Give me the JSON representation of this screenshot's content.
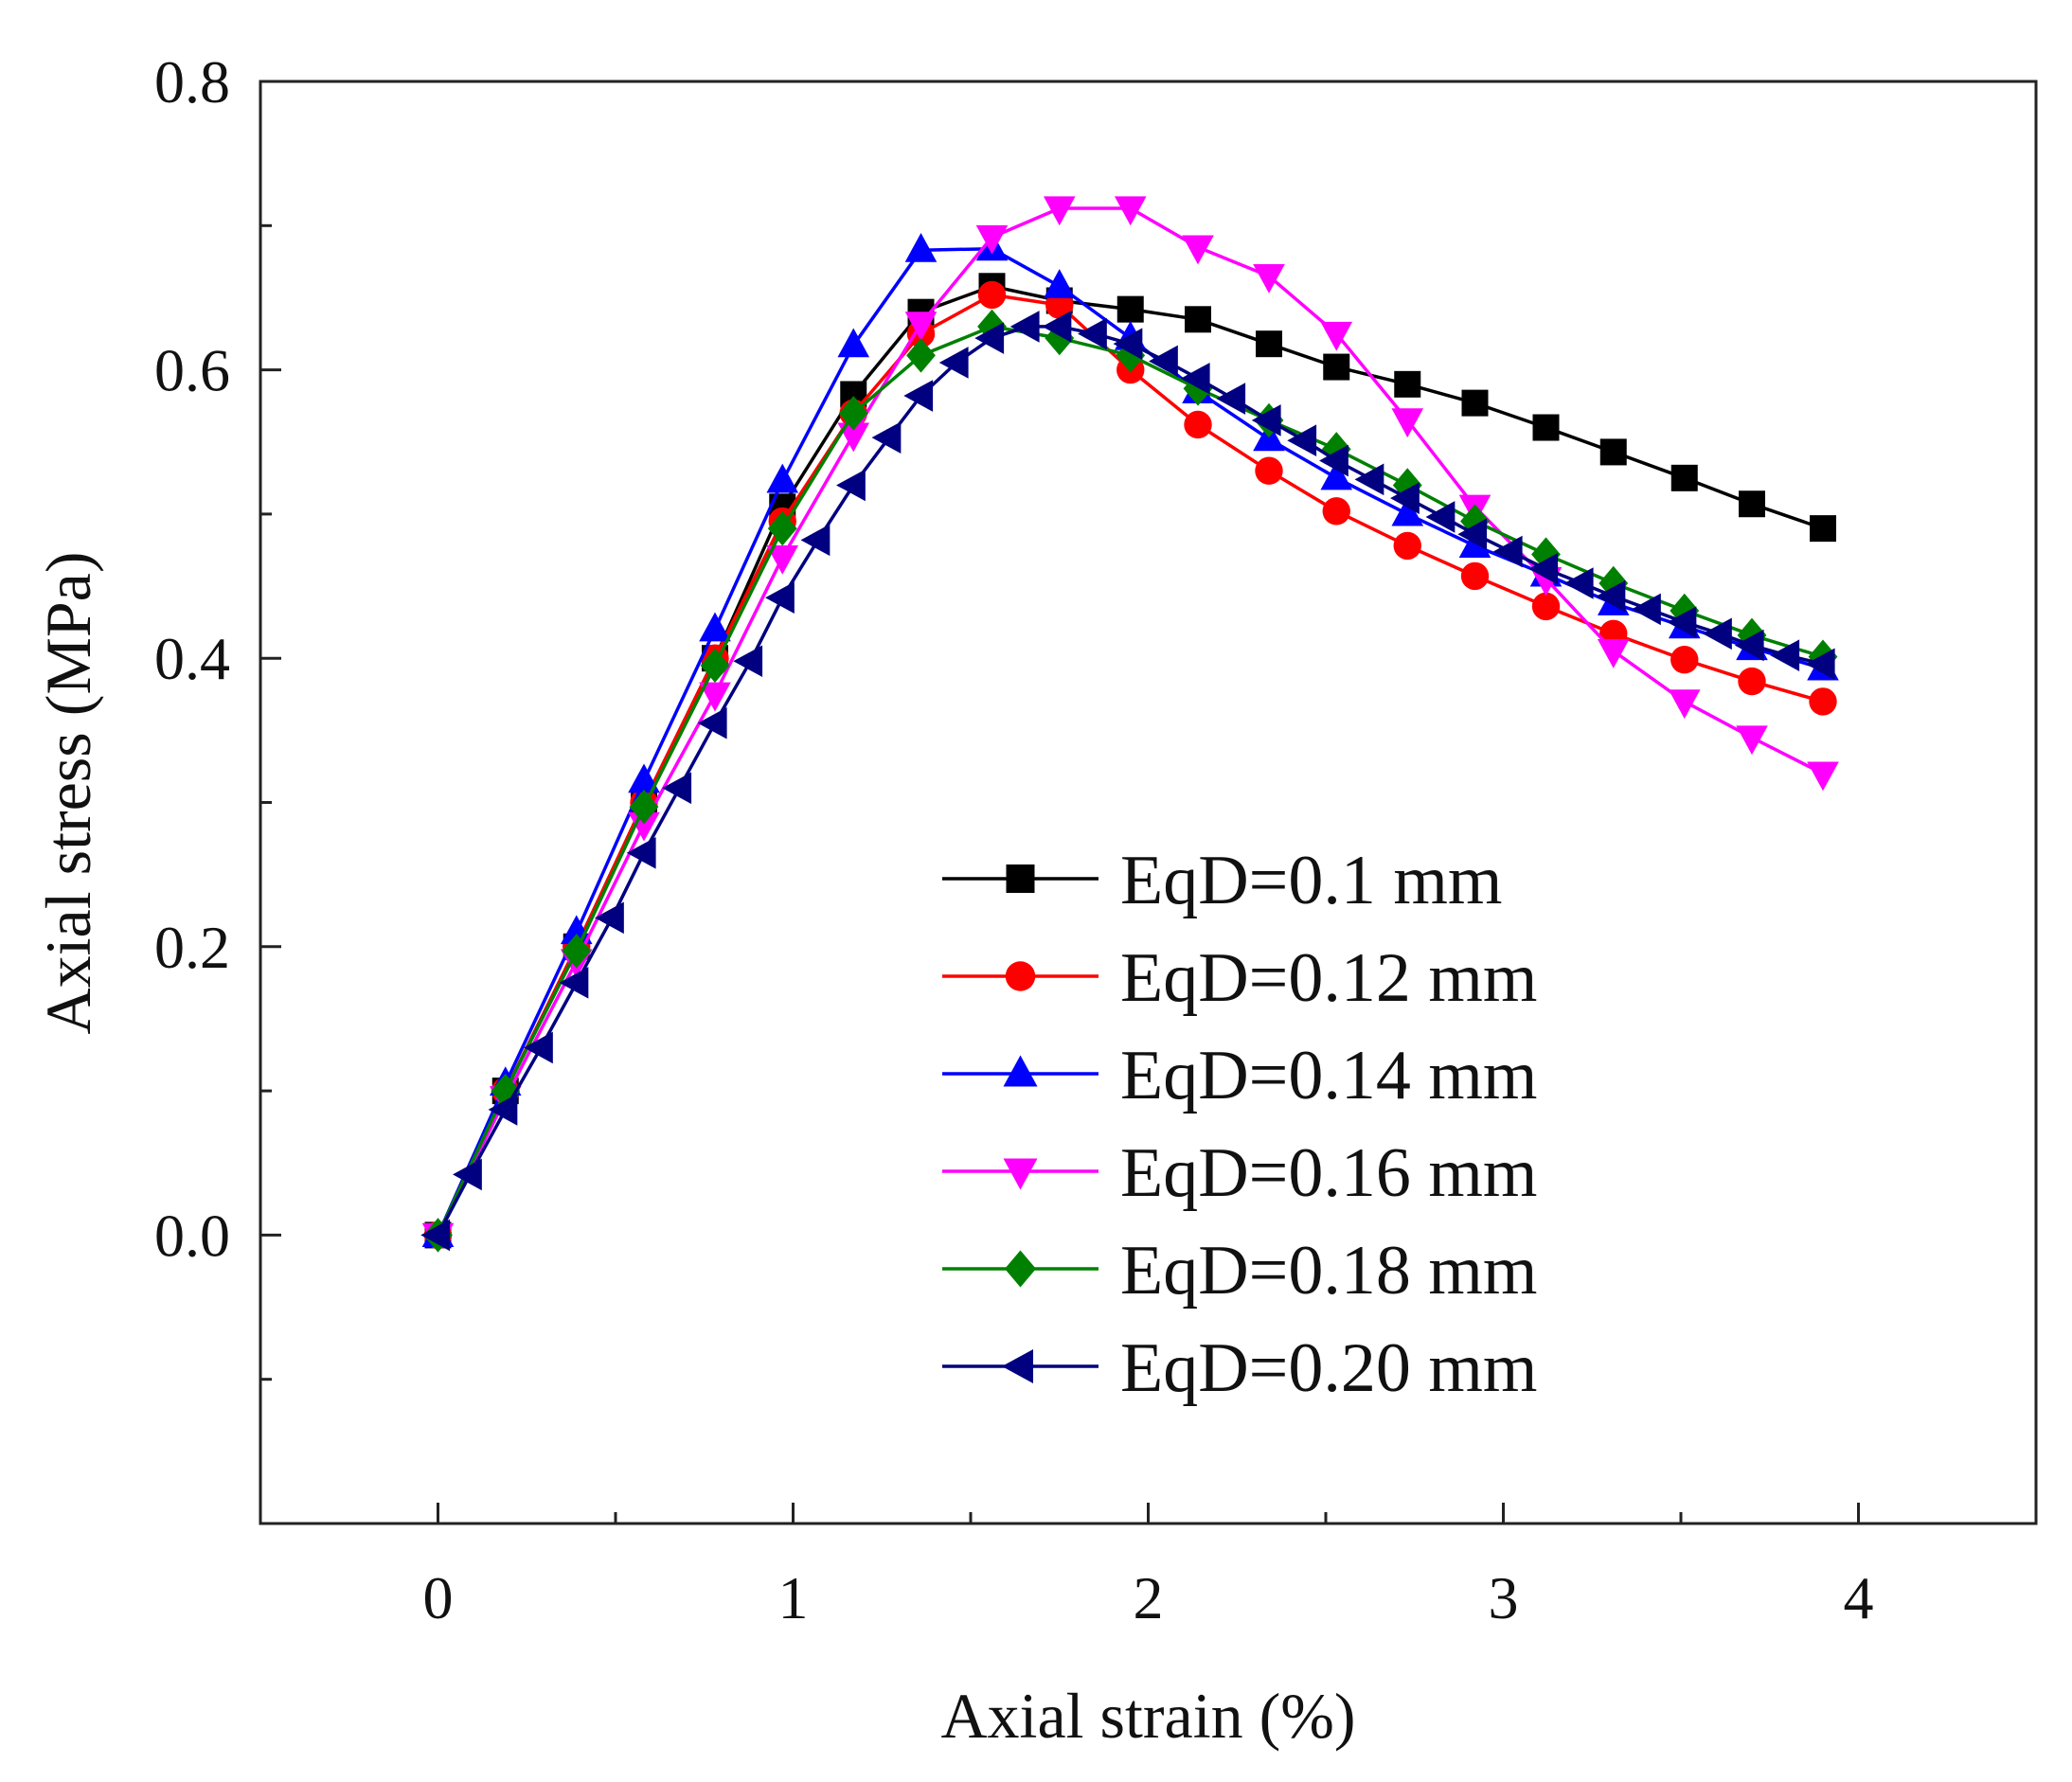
{
  "chart_data": {
    "type": "line",
    "title": "",
    "xlabel": "Axial strain (%)",
    "ylabel": "Axial stress (MPa)",
    "xlim": [
      -0.5,
      4.5
    ],
    "ylim": [
      -0.2,
      0.8
    ],
    "xticks": [
      0,
      1,
      2,
      3,
      4
    ],
    "xtick_labels": [
      "0",
      "1",
      "2",
      "3",
      "4"
    ],
    "yticks": [
      0.0,
      0.2,
      0.4,
      0.6,
      0.8
    ],
    "ytick_labels": [
      "0.0",
      "0.2",
      "0.4",
      "0.6",
      "0.8"
    ],
    "legend_position": "center-right",
    "grid": false,
    "series": [
      {
        "name": "EqD=0.1 mm",
        "color": "#000000",
        "marker": "square",
        "x": [
          0,
          0.19,
          0.39,
          0.58,
          0.78,
          0.97,
          1.17,
          1.36,
          1.56,
          1.75,
          1.95,
          2.14,
          2.34,
          2.53,
          2.73,
          2.92,
          3.12,
          3.31,
          3.51,
          3.7,
          3.9
        ],
        "y": [
          0,
          0.1,
          0.2,
          0.3,
          0.4,
          0.505,
          0.583,
          0.64,
          0.658,
          0.648,
          0.642,
          0.635,
          0.618,
          0.602,
          0.59,
          0.577,
          0.56,
          0.543,
          0.525,
          0.507,
          0.49
        ]
      },
      {
        "name": "EqD=0.12 mm",
        "color": "#ff0000",
        "marker": "circle",
        "x": [
          0,
          0.19,
          0.39,
          0.58,
          0.78,
          0.97,
          1.17,
          1.36,
          1.56,
          1.75,
          1.95,
          2.14,
          2.34,
          2.53,
          2.73,
          2.92,
          3.12,
          3.31,
          3.51,
          3.7,
          3.9
        ],
        "y": [
          0,
          0.1,
          0.2,
          0.3,
          0.4,
          0.495,
          0.57,
          0.625,
          0.652,
          0.645,
          0.6,
          0.562,
          0.53,
          0.502,
          0.478,
          0.457,
          0.436,
          0.417,
          0.399,
          0.384,
          0.37
        ]
      },
      {
        "name": "EqD=0.14 mm",
        "color": "#0000ff",
        "marker": "triangle-up",
        "x": [
          0,
          0.19,
          0.39,
          0.58,
          0.78,
          0.97,
          1.17,
          1.36,
          1.56,
          1.75,
          1.95,
          2.14,
          2.34,
          2.53,
          2.73,
          2.92,
          3.12,
          3.31,
          3.51,
          3.7,
          3.9
        ],
        "y": [
          0,
          0.105,
          0.21,
          0.315,
          0.42,
          0.523,
          0.617,
          0.683,
          0.684,
          0.658,
          0.622,
          0.585,
          0.552,
          0.525,
          0.5,
          0.478,
          0.458,
          0.438,
          0.422,
          0.407,
          0.393
        ]
      },
      {
        "name": "EqD=0.16 mm",
        "color": "#ff00ff",
        "marker": "triangle-down",
        "x": [
          0,
          0.19,
          0.39,
          0.58,
          0.78,
          0.97,
          1.17,
          1.36,
          1.56,
          1.75,
          1.95,
          2.14,
          2.34,
          2.53,
          2.73,
          2.92,
          3.12,
          3.31,
          3.51,
          3.7,
          3.9
        ],
        "y": [
          0,
          0.095,
          0.19,
          0.285,
          0.375,
          0.47,
          0.555,
          0.632,
          0.692,
          0.712,
          0.712,
          0.685,
          0.665,
          0.625,
          0.565,
          0.505,
          0.455,
          0.405,
          0.37,
          0.345,
          0.32
        ]
      },
      {
        "name": "EqD=0.18 mm",
        "color": "#008000",
        "marker": "diamond",
        "x": [
          0,
          0.19,
          0.39,
          0.58,
          0.78,
          0.97,
          1.17,
          1.36,
          1.56,
          1.75,
          1.95,
          2.14,
          2.34,
          2.53,
          2.73,
          2.92,
          3.12,
          3.31,
          3.51,
          3.7,
          3.9
        ],
        "y": [
          0,
          0.1,
          0.197,
          0.297,
          0.395,
          0.49,
          0.57,
          0.61,
          0.63,
          0.622,
          0.61,
          0.587,
          0.565,
          0.545,
          0.52,
          0.495,
          0.472,
          0.452,
          0.433,
          0.416,
          0.401
        ]
      },
      {
        "name": "EqD=0.20 mm",
        "color": "#000080",
        "marker": "triangle-left",
        "x": [
          0,
          0.09,
          0.19,
          0.29,
          0.39,
          0.49,
          0.58,
          0.68,
          0.78,
          0.88,
          0.97,
          1.07,
          1.17,
          1.27,
          1.36,
          1.46,
          1.56,
          1.66,
          1.75,
          1.85,
          1.95,
          2.05,
          2.14,
          2.24,
          2.34,
          2.44,
          2.53,
          2.63,
          2.73,
          2.83,
          2.92,
          3.02,
          3.12,
          3.22,
          3.31,
          3.41,
          3.51,
          3.61,
          3.7,
          3.8,
          3.9
        ],
        "y": [
          0,
          0.042,
          0.087,
          0.13,
          0.175,
          0.22,
          0.265,
          0.31,
          0.355,
          0.398,
          0.442,
          0.482,
          0.52,
          0.553,
          0.582,
          0.605,
          0.622,
          0.63,
          0.63,
          0.625,
          0.618,
          0.606,
          0.594,
          0.58,
          0.565,
          0.551,
          0.537,
          0.524,
          0.511,
          0.498,
          0.486,
          0.474,
          0.462,
          0.452,
          0.443,
          0.434,
          0.425,
          0.417,
          0.409,
          0.402,
          0.396
        ]
      }
    ]
  }
}
